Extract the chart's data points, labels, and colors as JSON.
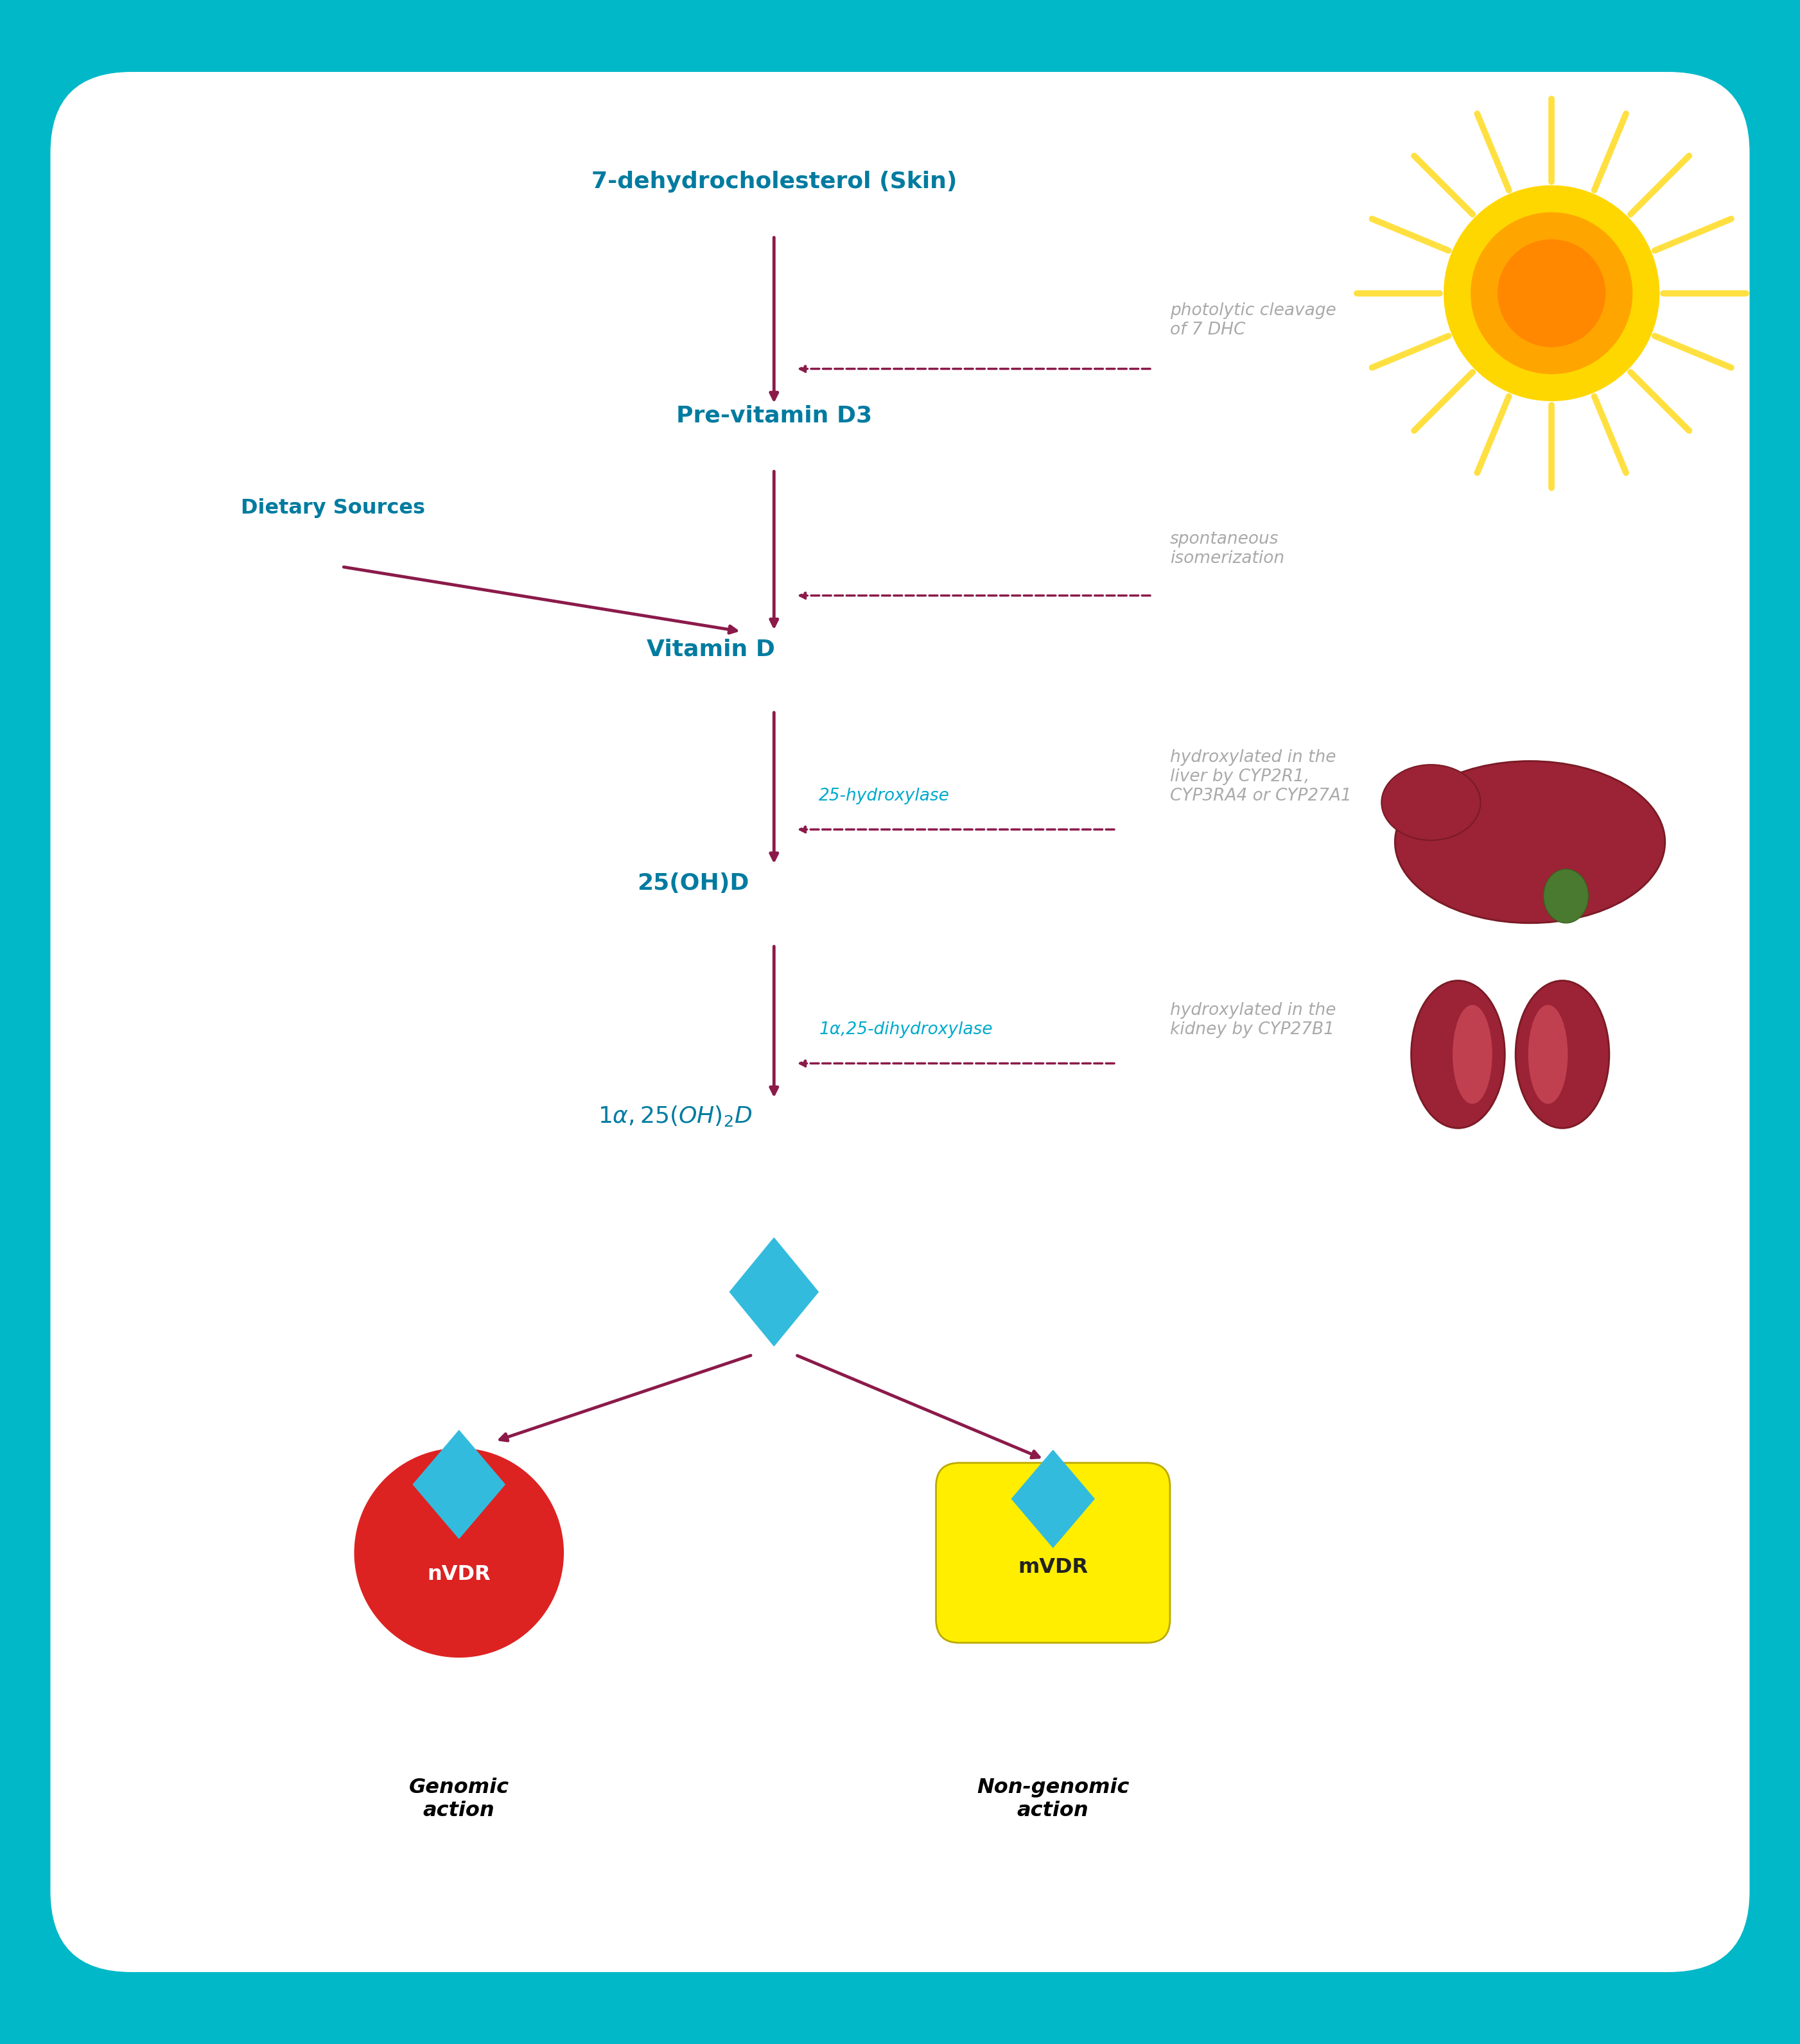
{
  "bg_outer": "#00B8C8",
  "bg_inner": "#FFFFFF",
  "teal": "#007BA0",
  "arrow_color": "#8B1A4A",
  "cyan_label": "#00AACC",
  "gray_text": "#AAAAAA",
  "diamond_color": "#33BBDD",
  "red_circle": "#DD2222",
  "yellow_rect": "#FFEE00",
  "labels": {
    "seven_dhc": "7-dehydrocholesterol (Skin)",
    "previtD3": "Pre-vitamin D3",
    "vitD": "Vitamin D",
    "oh25": "25(OH)D",
    "dietary": "Dietary Sources",
    "photolytic": "photolytic cleavage\nof 7 DHC",
    "spontaneous": "spontaneous\nisomerization",
    "hydroxylase25": "25-hydroxylase",
    "liver_text": "hydroxylated in the\nliver by CYP2R1,\nCYP3RA4 or CYP27A1",
    "dihydroxylase": "1α,25-dihydroxylase",
    "kidney_text": "hydroxylated in the\nkidney by CYP27B1",
    "nVDR": "nVDR",
    "mVDR": "mVDR",
    "genomic": "Genomic\naction",
    "nongenomic": "Non-genomic\naction"
  }
}
